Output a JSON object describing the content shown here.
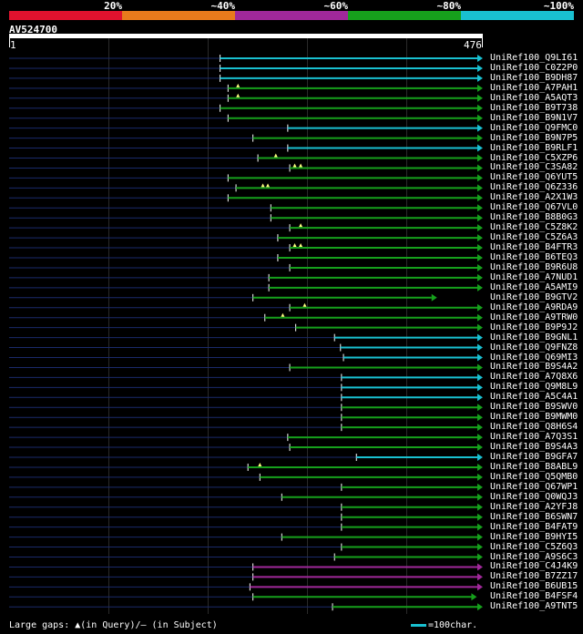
{
  "legend": {
    "colors": [
      "#e0122e",
      "#e87a1c",
      "#a0289a",
      "#16a01c",
      "#19c0d0"
    ],
    "labels": [
      "20%",
      "~40%",
      "~60%",
      "~80%",
      "~100%"
    ]
  },
  "query": {
    "name": "AV524700",
    "start": "1",
    "end": "476",
    "length": 476
  },
  "hits": [
    {
      "label": "UniRef100_Q9LI61",
      "start": 212,
      "end": 476,
      "color": "#19c0d0",
      "arrow": true
    },
    {
      "label": "UniRef100_C0Z2P0",
      "start": 212,
      "end": 476,
      "color": "#19c0d0",
      "arrow": true
    },
    {
      "label": "UniRef100_B9DH87",
      "start": 212,
      "end": 476,
      "color": "#19c0d0",
      "arrow": true
    },
    {
      "label": "UniRef100_A7PAH1",
      "start": 220,
      "end": 476,
      "color": "#16a01c",
      "arrow": true,
      "marks": [
        230
      ]
    },
    {
      "label": "UniRef100_A5AQT3",
      "start": 220,
      "end": 476,
      "color": "#16a01c",
      "arrow": true,
      "marks": [
        230
      ]
    },
    {
      "label": "UniRef100_B9T738",
      "start": 212,
      "end": 476,
      "color": "#16a01c",
      "arrow": true
    },
    {
      "label": "UniRef100_B9N1V7",
      "start": 220,
      "end": 476,
      "color": "#16a01c",
      "arrow": true
    },
    {
      "label": "UniRef100_Q9FMC0",
      "start": 280,
      "end": 476,
      "color": "#19c0d0",
      "arrow": true
    },
    {
      "label": "UniRef100_B9N7P5",
      "start": 245,
      "end": 476,
      "color": "#16a01c",
      "arrow": true
    },
    {
      "label": "UniRef100_B9RLF1",
      "start": 280,
      "end": 476,
      "color": "#19c0d0",
      "arrow": true
    },
    {
      "label": "UniRef100_C5XZP6",
      "start": 250,
      "end": 476,
      "color": "#16a01c",
      "arrow": true,
      "marks": [
        268
      ]
    },
    {
      "label": "UniRef100_C3SA82",
      "start": 282,
      "end": 476,
      "color": "#16a01c",
      "arrow": true,
      "marks": [
        287,
        293
      ]
    },
    {
      "label": "UniRef100_Q6YUT5",
      "start": 220,
      "end": 476,
      "color": "#16a01c",
      "arrow": true
    },
    {
      "label": "UniRef100_Q6Z336",
      "start": 228,
      "end": 476,
      "color": "#16a01c",
      "arrow": true,
      "marks": [
        255,
        260
      ]
    },
    {
      "label": "UniRef100_A2X1W3",
      "start": 220,
      "end": 476,
      "color": "#16a01c",
      "arrow": true
    },
    {
      "label": "UniRef100_Q67VL0",
      "start": 263,
      "end": 476,
      "color": "#16a01c",
      "arrow": true
    },
    {
      "label": "UniRef100_B8B0G3",
      "start": 263,
      "end": 476,
      "color": "#16a01c",
      "arrow": true
    },
    {
      "label": "UniRef100_C5Z8K2",
      "start": 282,
      "end": 476,
      "color": "#16a01c",
      "arrow": true,
      "marks": [
        293
      ]
    },
    {
      "label": "UniRef100_C5Z6A3",
      "start": 270,
      "end": 476,
      "color": "#16a01c",
      "arrow": true
    },
    {
      "label": "UniRef100_B4FTR3",
      "start": 282,
      "end": 476,
      "color": "#16a01c",
      "arrow": true,
      "marks": [
        287,
        293
      ]
    },
    {
      "label": "UniRef100_B6TEQ3",
      "start": 270,
      "end": 476,
      "color": "#16a01c",
      "arrow": true
    },
    {
      "label": "UniRef100_B9R6U8",
      "start": 282,
      "end": 476,
      "color": "#16a01c",
      "arrow": true
    },
    {
      "label": "UniRef100_A7NUD1",
      "start": 261,
      "end": 476,
      "color": "#16a01c",
      "arrow": true
    },
    {
      "label": "UniRef100_A5AMI9",
      "start": 261,
      "end": 476,
      "color": "#16a01c",
      "arrow": true
    },
    {
      "label": "UniRef100_B9GTV2",
      "start": 245,
      "end": 430,
      "color": "#16a01c",
      "arrow": true
    },
    {
      "label": "UniRef100_A9RDA9",
      "start": 282,
      "end": 476,
      "color": "#16a01c",
      "arrow": true,
      "marks": [
        297
      ]
    },
    {
      "label": "UniRef100_A9TRW0",
      "start": 257,
      "end": 476,
      "color": "#16a01c",
      "arrow": true,
      "marks": [
        275
      ]
    },
    {
      "label": "UniRef100_B9P9J2",
      "start": 288,
      "end": 476,
      "color": "#16a01c",
      "arrow": true
    },
    {
      "label": "UniRef100_B9GNL1",
      "start": 327,
      "end": 476,
      "color": "#19c0d0",
      "arrow": true
    },
    {
      "label": "UniRef100_Q9FNZ8",
      "start": 333,
      "end": 476,
      "color": "#19c0d0",
      "arrow": true
    },
    {
      "label": "UniRef100_Q69MI3",
      "start": 336,
      "end": 476,
      "color": "#19c0d0",
      "arrow": true
    },
    {
      "label": "UniRef100_B9S4A2",
      "start": 282,
      "end": 476,
      "color": "#16a01c",
      "arrow": true
    },
    {
      "label": "UniRef100_A7Q8X6",
      "start": 334,
      "end": 476,
      "color": "#19c0d0",
      "arrow": true
    },
    {
      "label": "UniRef100_Q9M8L9",
      "start": 334,
      "end": 476,
      "color": "#19c0d0",
      "arrow": true
    },
    {
      "label": "UniRef100_A5C4A1",
      "start": 334,
      "end": 476,
      "color": "#19c0d0",
      "arrow": true
    },
    {
      "label": "UniRef100_B9SWV0",
      "start": 334,
      "end": 476,
      "color": "#16a01c",
      "arrow": true
    },
    {
      "label": "UniRef100_B9MWM0",
      "start": 334,
      "end": 476,
      "color": "#16a01c",
      "arrow": true
    },
    {
      "label": "UniRef100_Q8H6S4",
      "start": 334,
      "end": 476,
      "color": "#16a01c",
      "arrow": true
    },
    {
      "label": "UniRef100_A7Q3S1",
      "start": 280,
      "end": 476,
      "color": "#16a01c",
      "arrow": true
    },
    {
      "label": "UniRef100_B9S4A3",
      "start": 282,
      "end": 476,
      "color": "#16a01c",
      "arrow": true
    },
    {
      "label": "UniRef100_B9GFA7",
      "start": 349,
      "end": 476,
      "color": "#19c0d0",
      "arrow": true
    },
    {
      "label": "UniRef100_B8ABL9",
      "start": 240,
      "end": 476,
      "color": "#16a01c",
      "arrow": true,
      "marks": [
        252
      ]
    },
    {
      "label": "UniRef100_Q5QMB0",
      "start": 252,
      "end": 476,
      "color": "#16a01c",
      "arrow": true
    },
    {
      "label": "UniRef100_Q67WP1",
      "start": 334,
      "end": 476,
      "color": "#16a01c",
      "arrow": true
    },
    {
      "label": "UniRef100_Q0WQJ3",
      "start": 274,
      "end": 476,
      "color": "#16a01c",
      "arrow": true
    },
    {
      "label": "UniRef100_A2YFJ8",
      "start": 334,
      "end": 476,
      "color": "#16a01c",
      "arrow": true
    },
    {
      "label": "UniRef100_B6SWN7",
      "start": 334,
      "end": 476,
      "color": "#16a01c",
      "arrow": true
    },
    {
      "label": "UniRef100_B4FAT9",
      "start": 334,
      "end": 476,
      "color": "#16a01c",
      "arrow": true
    },
    {
      "label": "UniRef100_B9HYI5",
      "start": 274,
      "end": 476,
      "color": "#16a01c",
      "arrow": true
    },
    {
      "label": "UniRef100_C5Z6Q3",
      "start": 334,
      "end": 476,
      "color": "#16a01c",
      "arrow": true
    },
    {
      "label": "UniRef100_A9S6C3",
      "start": 327,
      "end": 476,
      "color": "#16a01c",
      "arrow": true
    },
    {
      "label": "UniRef100_C4J4K9",
      "start": 245,
      "end": 476,
      "color": "#a0289a",
      "arrow": true
    },
    {
      "label": "UniRef100_B7ZZ17",
      "start": 245,
      "end": 476,
      "color": "#a0289a",
      "arrow": true
    },
    {
      "label": "UniRef100_B6UB15",
      "start": 242,
      "end": 476,
      "color": "#a0289a",
      "arrow": true
    },
    {
      "label": "UniRef100_B4FSF4",
      "start": 245,
      "end": 470,
      "color": "#16a01c",
      "arrow": true
    },
    {
      "label": "UniRef100_A9TNT5",
      "start": 325,
      "end": 476,
      "color": "#16a01c",
      "arrow": true
    }
  ],
  "footer": {
    "gaps_text": "Large gaps: ▲(in Query)/— (in Subject)",
    "scale_text": "=100char."
  }
}
